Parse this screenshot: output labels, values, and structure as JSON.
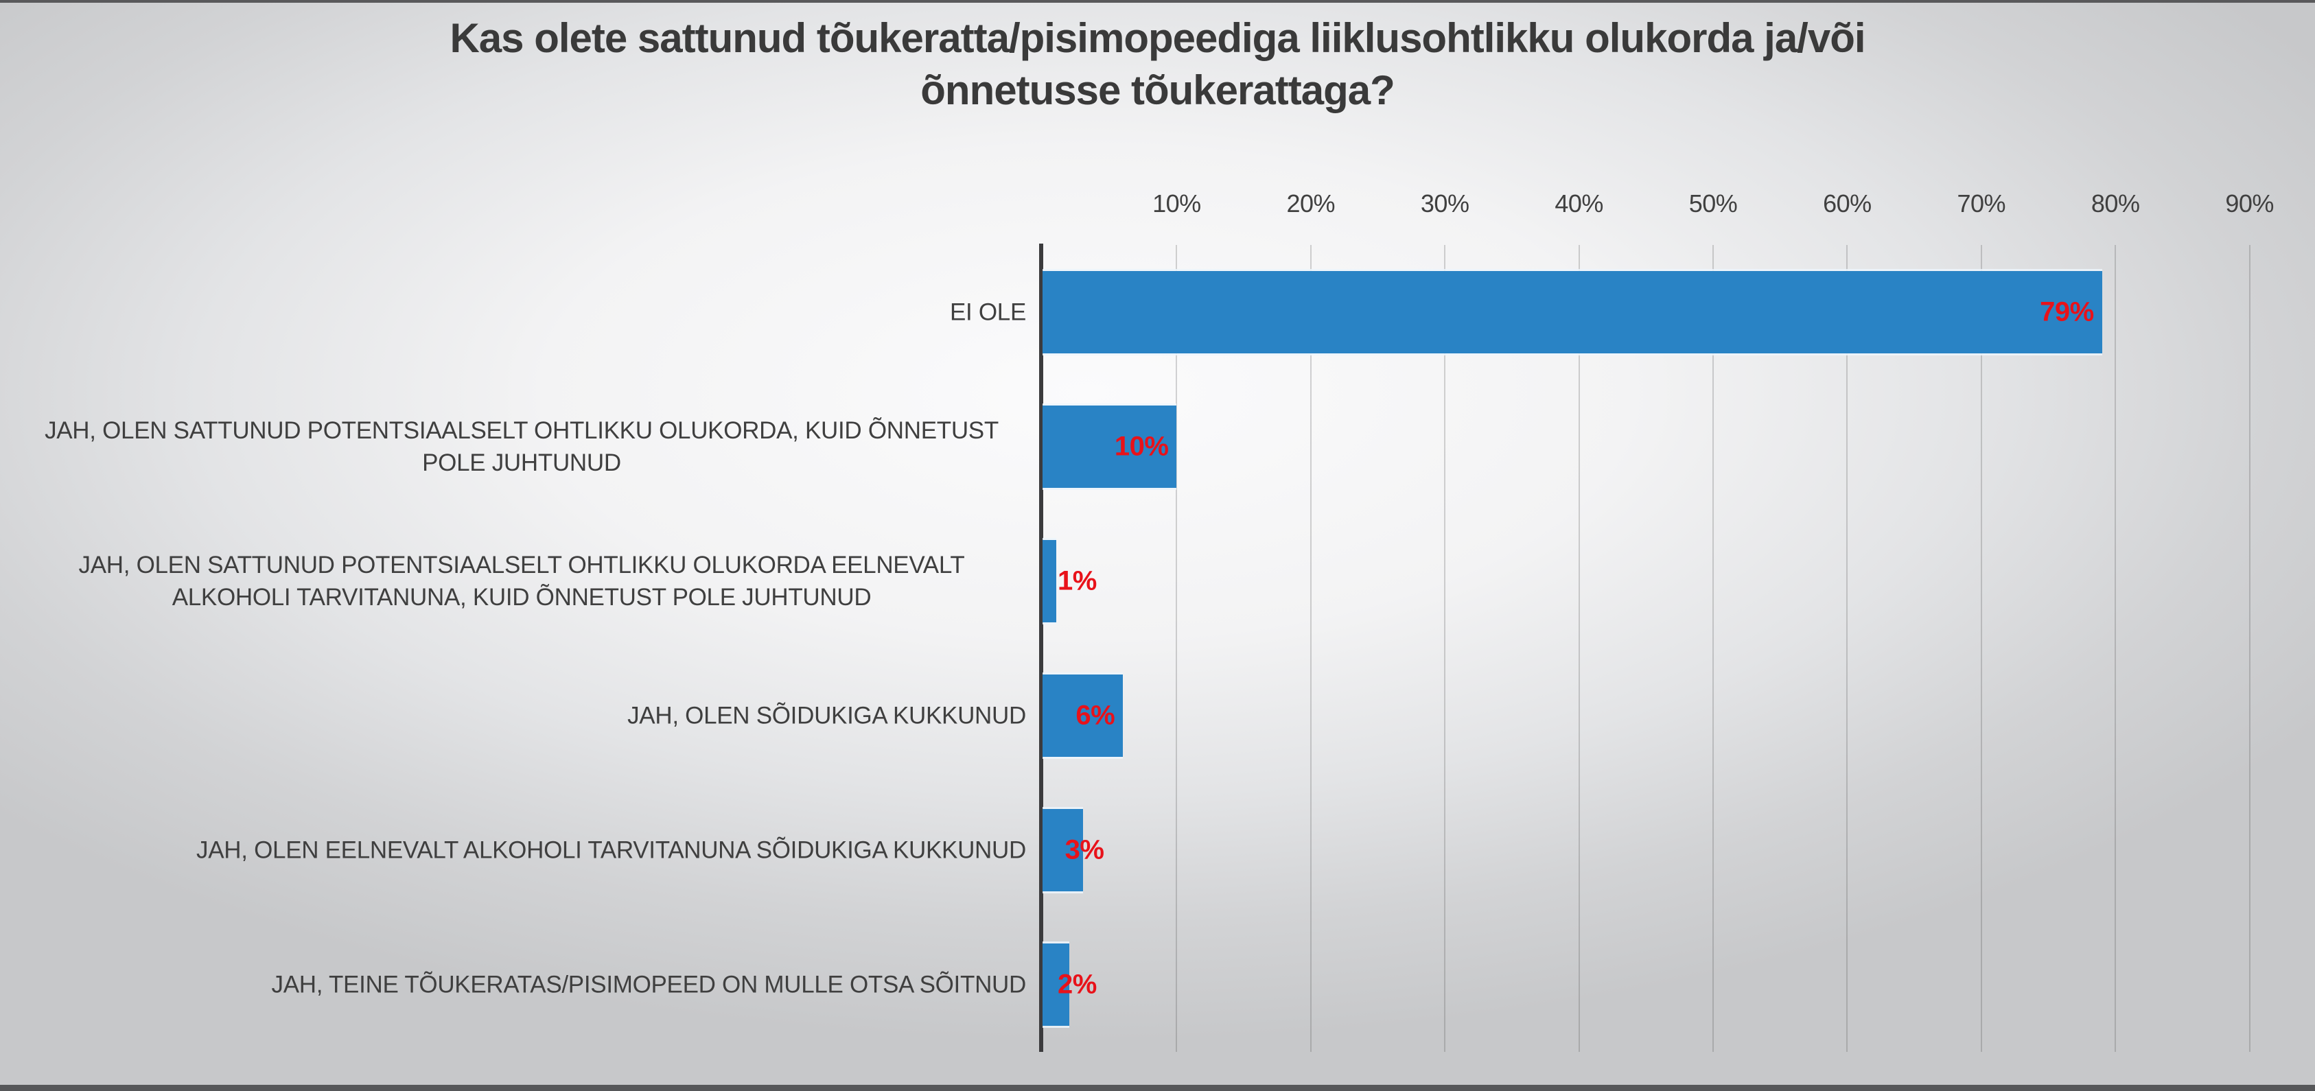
{
  "chart_data": {
    "type": "bar",
    "orientation": "horizontal",
    "title_line1": "Kas olete sattunud tõukeratta/pisimopeediga liiklusohtlikku olukorda ja/või",
    "title_line2": "õnnetusse tõukerattaga?",
    "categories": [
      "EI OLE",
      "JAH, OLEN SATTUNUD POTENTSIAALSELT OHTLIKKU OLUKORDA, KUID ÕNNETUST POLE JUHTUNUD",
      "JAH, OLEN SATTUNUD POTENTSIAALSELT OHTLIKKU OLUKORDA EELNEVALT ALKOHOLI TARVITANUNA, KUID ÕNNETUST POLE JUHTUNUD",
      "JAH, OLEN SÕIDUKIGA KUKKUNUD",
      "JAH, OLEN EELNEVALT ALKOHOLI TARVITANUNA SÕIDUKIGA KUKKUNUD",
      "JAH, TEINE TÕUKERATAS/PISIMOPEED ON MULLE OTSA SÕITNUD"
    ],
    "values": [
      79,
      10,
      1,
      6,
      3,
      2
    ],
    "value_labels": [
      "79%",
      "10%",
      "1%",
      "6%",
      "3%",
      "2%"
    ],
    "axis_ticks": [
      "10%",
      "20%",
      "30%",
      "40%",
      "50%",
      "60%",
      "70%",
      "80%",
      "90%"
    ],
    "xlim": [
      0,
      90
    ],
    "grid": true,
    "legend": false,
    "xlabel": "",
    "ylabel": "",
    "colors": {
      "bar": "#2983c5",
      "value_label": "#e8121a",
      "text": "#3f3f3f",
      "axis_line": "#3b3b3d"
    }
  }
}
